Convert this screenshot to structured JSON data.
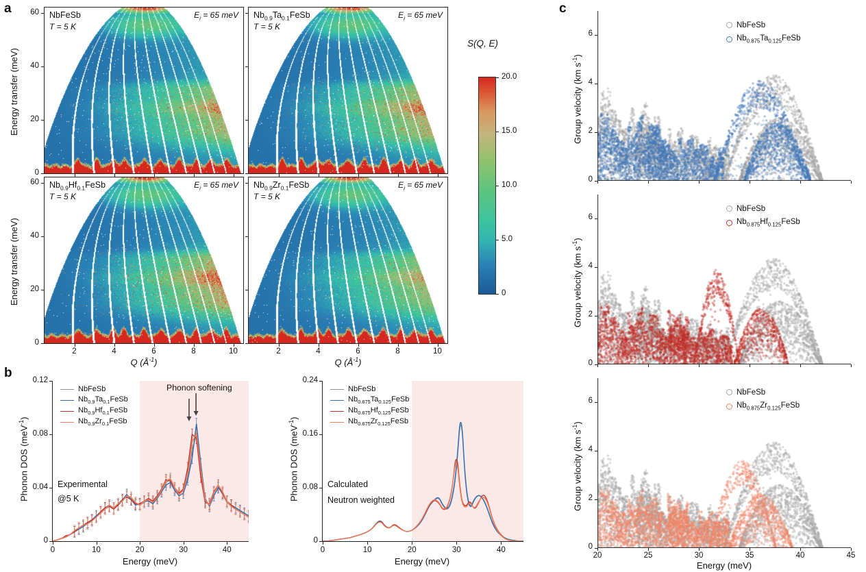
{
  "panel_labels": {
    "a": "a",
    "b": "b",
    "c": "c"
  },
  "chart_data": [
    {
      "type": "heatmap",
      "panel_letter": "a",
      "x_label": "Q (Å^{-1})",
      "y_label": "Energy transfer (meV)",
      "x_range": [
        0.5,
        10.5
      ],
      "y_range": [
        0,
        62
      ],
      "x_ticks": [
        2,
        4,
        6,
        8,
        10
      ],
      "y_ticks": [
        0,
        20,
        40,
        60
      ],
      "value_label": "S(Q, E)",
      "value_range": [
        0,
        20
      ],
      "colorbar_ticks": [
        {
          "value": 20,
          "label": "20.0"
        },
        {
          "value": 15,
          "label": "15.0"
        },
        {
          "value": 10,
          "label": "10.0"
        },
        {
          "value": 5,
          "label": "5.0"
        },
        {
          "value": 0,
          "label": "0"
        }
      ],
      "colormap_stops": [
        [
          0,
          "#1c5a99"
        ],
        [
          0.13,
          "#2a80b5"
        ],
        [
          0.24,
          "#33b3b2"
        ],
        [
          0.34,
          "#3fc49f"
        ],
        [
          0.48,
          "#5ec47f"
        ],
        [
          0.62,
          "#93c26c"
        ],
        [
          0.74,
          "#c4b47d"
        ],
        [
          0.84,
          "#d89a61"
        ],
        [
          0.92,
          "#dd5f39"
        ],
        [
          1,
          "#d6281f"
        ]
      ],
      "panels": [
        {
          "label": "NbFeSb",
          "temperature": "T = 5 K",
          "incident_energy": "E_{i} = 65 meV",
          "seed": 11,
          "speckle": 0.9,
          "band_scale": 1.0
        },
        {
          "label": "Nb_{0.9}Ta_{0.1}FeSb",
          "temperature": "T = 5 K",
          "incident_energy": "E_{i} = 65 meV",
          "seed": 23,
          "speckle": 1.25,
          "band_scale": 1.08
        },
        {
          "label": "Nb_{0.9}Hf_{0.1}FeSb",
          "temperature": "T = 5 K",
          "incident_energy": "E_{i} = 65 meV",
          "seed": 37,
          "speckle": 1.6,
          "band_scale": 1.15
        },
        {
          "label": "Nb_{0.9}Zr_{0.1}FeSb",
          "temperature": "T = 5 K",
          "incident_energy": "E_{i} = 65 meV",
          "seed": 49,
          "speckle": 0.55,
          "band_scale": 0.92
        }
      ]
    },
    {
      "type": "line",
      "panel_letter": "b",
      "x_label": "Energy (meV)",
      "y_label": "Phonon DOS (meV^{-1})",
      "x_range": [
        0,
        45
      ],
      "y_range": [
        0,
        0.12
      ],
      "x_ticks": [
        0,
        10,
        20,
        30,
        40
      ],
      "y_ticks": [
        0,
        0.04,
        0.08,
        0.12
      ],
      "x_step": 1,
      "shade_from": 20,
      "shade_color": "#fbe9e7",
      "annotation": "Phonon softening",
      "annotation_arrows_at": [
        31.3,
        32.9
      ],
      "notes": [
        "Experimental",
        "@5 K"
      ],
      "error_bar": 0.004,
      "style": "jagged",
      "series": [
        {
          "label": "NbFeSb",
          "color": "#8f8f8f",
          "values": [
            0,
            0.001,
            0.002,
            0.003,
            0.005,
            0.007,
            0.009,
            0.011,
            0.013,
            0.016,
            0.018,
            0.021,
            0.024,
            0.026,
            0.025,
            0.027,
            0.03,
            0.034,
            0.032,
            0.028,
            0.027,
            0.029,
            0.031,
            0.029,
            0.033,
            0.038,
            0.044,
            0.046,
            0.039,
            0.035,
            0.038,
            0.048,
            0.068,
            0.08,
            0.052,
            0.03,
            0.027,
            0.036,
            0.041,
            0.035,
            0.029,
            0.026,
            0.024,
            0.022,
            0.02,
            0.018
          ]
        },
        {
          "label": "Nb_{0.9}Ta_{0.1}FeSb",
          "color": "#2f6eb5",
          "values": [
            0,
            0.001,
            0.002,
            0.003,
            0.005,
            0.007,
            0.009,
            0.011,
            0.014,
            0.016,
            0.019,
            0.022,
            0.025,
            0.027,
            0.025,
            0.028,
            0.031,
            0.035,
            0.031,
            0.027,
            0.028,
            0.03,
            0.03,
            0.028,
            0.032,
            0.037,
            0.042,
            0.044,
            0.038,
            0.034,
            0.036,
            0.046,
            0.062,
            0.088,
            0.058,
            0.032,
            0.026,
            0.034,
            0.04,
            0.036,
            0.03,
            0.027,
            0.025,
            0.023,
            0.021,
            0.019
          ]
        },
        {
          "label": "Nb_{0.9}Hf_{0.1}FeSb",
          "color": "#c4332b",
          "values": [
            0,
            0.001,
            0.002,
            0.004,
            0.005,
            0.007,
            0.01,
            0.012,
            0.014,
            0.016,
            0.018,
            0.022,
            0.025,
            0.026,
            0.024,
            0.027,
            0.031,
            0.033,
            0.031,
            0.028,
            0.028,
            0.03,
            0.032,
            0.03,
            0.034,
            0.039,
            0.046,
            0.045,
            0.04,
            0.036,
            0.039,
            0.055,
            0.08,
            0.077,
            0.048,
            0.029,
            0.028,
            0.037,
            0.042,
            0.036,
            0.03,
            0.027,
            0.024,
            0.022,
            0.02,
            0.018
          ]
        },
        {
          "label": "Nb_{0.9}Zr_{0.1}FeSb",
          "color": "#ef7f5a",
          "values": [
            0,
            0.001,
            0.002,
            0.003,
            0.005,
            0.008,
            0.01,
            0.012,
            0.013,
            0.015,
            0.018,
            0.021,
            0.024,
            0.027,
            0.025,
            0.028,
            0.03,
            0.034,
            0.033,
            0.029,
            0.027,
            0.03,
            0.031,
            0.029,
            0.033,
            0.038,
            0.045,
            0.047,
            0.04,
            0.035,
            0.038,
            0.05,
            0.074,
            0.081,
            0.054,
            0.031,
            0.027,
            0.036,
            0.042,
            0.037,
            0.03,
            0.026,
            0.024,
            0.022,
            0.02,
            0.018
          ]
        }
      ]
    },
    {
      "type": "line",
      "panel_letter": "b",
      "x_label": "Energy (meV)",
      "y_label": "Phonon DOS (meV^{-1})",
      "x_range": [
        0,
        45
      ],
      "y_range": [
        0,
        0.24
      ],
      "x_ticks": [
        0,
        10,
        20,
        30,
        40
      ],
      "y_ticks": [
        0,
        0.08,
        0.16,
        0.24
      ],
      "x_step": 1,
      "shade_from": 20,
      "shade_color": "#fbe9e7",
      "notes": [
        "Calculated",
        "Neutron weighted"
      ],
      "style": "smooth",
      "series": [
        {
          "label": "NbFeSb",
          "color": "#8f8f8f",
          "values": [
            0,
            0,
            0.001,
            0.002,
            0.003,
            0.004,
            0.005,
            0.007,
            0.009,
            0.011,
            0.014,
            0.018,
            0.026,
            0.031,
            0.022,
            0.019,
            0.026,
            0.021,
            0.016,
            0.014,
            0.016,
            0.021,
            0.028,
            0.04,
            0.054,
            0.061,
            0.066,
            0.052,
            0.046,
            0.06,
            0.105,
            0.2,
            0.085,
            0.048,
            0.064,
            0.07,
            0.064,
            0.048,
            0.028,
            0.016,
            0.009,
            0.004,
            0.002,
            0.001,
            0,
            0
          ]
        },
        {
          "label": "Nb_{0.875}Ta_{0.125}FeSb",
          "color": "#2f6eb5",
          "values": [
            0,
            0,
            0.001,
            0.002,
            0.003,
            0.004,
            0.005,
            0.007,
            0.009,
            0.011,
            0.014,
            0.018,
            0.027,
            0.032,
            0.022,
            0.019,
            0.026,
            0.021,
            0.016,
            0.014,
            0.016,
            0.021,
            0.028,
            0.041,
            0.055,
            0.062,
            0.067,
            0.053,
            0.047,
            0.062,
            0.108,
            0.205,
            0.082,
            0.046,
            0.063,
            0.07,
            0.063,
            0.047,
            0.027,
            0.015,
            0.008,
            0.004,
            0.002,
            0.001,
            0,
            0
          ]
        },
        {
          "label": "Nb_{0.875}Hf_{0.125}FeSb",
          "color": "#c4332b",
          "values": [
            0,
            0,
            0.001,
            0.002,
            0.003,
            0.004,
            0.005,
            0.007,
            0.009,
            0.011,
            0.014,
            0.018,
            0.026,
            0.031,
            0.022,
            0.019,
            0.026,
            0.021,
            0.016,
            0.014,
            0.016,
            0.022,
            0.03,
            0.042,
            0.056,
            0.062,
            0.058,
            0.046,
            0.05,
            0.075,
            0.14,
            0.062,
            0.05,
            0.062,
            0.046,
            0.058,
            0.072,
            0.06,
            0.034,
            0.018,
            0.009,
            0.003,
            0.001,
            0,
            0,
            0
          ]
        },
        {
          "label": "Nb_{0.875}Zr_{0.125}FeSb",
          "color": "#ef7f5a",
          "values": [
            0,
            0,
            0.001,
            0.002,
            0.003,
            0.004,
            0.005,
            0.007,
            0.009,
            0.011,
            0.014,
            0.018,
            0.026,
            0.03,
            0.021,
            0.019,
            0.025,
            0.02,
            0.016,
            0.014,
            0.016,
            0.022,
            0.03,
            0.043,
            0.057,
            0.063,
            0.059,
            0.047,
            0.051,
            0.077,
            0.132,
            0.06,
            0.048,
            0.06,
            0.047,
            0.06,
            0.068,
            0.058,
            0.033,
            0.017,
            0.008,
            0.003,
            0.001,
            0,
            0,
            0
          ]
        }
      ]
    },
    {
      "type": "scatter",
      "panel_letter": "c",
      "x_label": "Energy (meV)",
      "y_label": "Group velocity (km s^{-1})",
      "x_range": [
        20,
        45
      ],
      "y_range": [
        0,
        7
      ],
      "x_ticks": [
        20,
        25,
        30,
        35,
        40,
        45
      ],
      "y_ticks": [
        0,
        2,
        4,
        6
      ],
      "reference": {
        "label": "NbFeSb",
        "color": "#a6a6a6",
        "seed": 5,
        "regions": [
          {
            "type": "cloud",
            "x": [
              20,
              26.5
            ],
            "ymax": [
              4.25,
              3.0
            ],
            "n": 1100,
            "col_step": 0.33
          },
          {
            "type": "cloud",
            "x": [
              24,
              33
            ],
            "ymax": [
              2.9,
              1.7
            ],
            "n": 1500,
            "col_step": 0.3
          },
          {
            "type": "shell",
            "x": [
              32.5,
              42.2
            ],
            "peak": 4.35,
            "n": 650
          },
          {
            "type": "dome",
            "x": [
              34,
              42
            ],
            "peak": 2.6,
            "n": 900
          }
        ]
      },
      "panels": [
        {
          "label": "Nb_{0.875}Ta_{0.125}FeSb",
          "color": "#4377b7",
          "seed": 7,
          "regions": [
            {
              "type": "cloud",
              "x": [
                20,
                27
              ],
              "ymax": [
                3.1,
                2.6
              ],
              "n": 1300,
              "col_step": 0.3
            },
            {
              "type": "cloud",
              "x": [
                25,
                32.5
              ],
              "ymax": [
                2.6,
                1.4
              ],
              "n": 1100,
              "col_step": 0.3
            },
            {
              "type": "shell",
              "x": [
                31.5,
                40.6
              ],
              "peak": 4.15,
              "n": 520
            },
            {
              "type": "dome",
              "x": [
                34.5,
                41
              ],
              "peak": 2.4,
              "n": 780
            }
          ]
        },
        {
          "label": "Nb_{0.875}Hf_{0.125}FeSb",
          "color": "#bf2f28",
          "seed": 8,
          "regions": [
            {
              "type": "cloud",
              "x": [
                20,
                29
              ],
              "ymax": [
                2.7,
                2.2
              ],
              "n": 1500,
              "col_step": 0.3
            },
            {
              "type": "cloud",
              "x": [
                27,
                33.5
              ],
              "ymax": [
                2.4,
                1.2
              ],
              "n": 900,
              "col_step": 0.3
            },
            {
              "type": "shell",
              "x": [
                29.5,
                34
              ],
              "peak": 3.9,
              "n": 320
            },
            {
              "type": "dome",
              "x": [
                33.5,
                38.8
              ],
              "peak": 2.3,
              "n": 520
            }
          ]
        },
        {
          "label": "Nb_{0.875}Zr_{0.125}FeSb",
          "color": "#ef8466",
          "seed": 9,
          "regions": [
            {
              "type": "cloud",
              "x": [
                20,
                29
              ],
              "ymax": [
                2.7,
                2.2
              ],
              "n": 1500,
              "col_step": 0.3
            },
            {
              "type": "cloud",
              "x": [
                27,
                33
              ],
              "ymax": [
                2.3,
                1.3
              ],
              "n": 900,
              "col_step": 0.3
            },
            {
              "type": "shell",
              "x": [
                31,
                37.6
              ],
              "peak": 3.6,
              "n": 380
            },
            {
              "type": "dome",
              "x": [
                33,
                39.2
              ],
              "peak": 2.2,
              "n": 600
            }
          ]
        }
      ]
    }
  ]
}
